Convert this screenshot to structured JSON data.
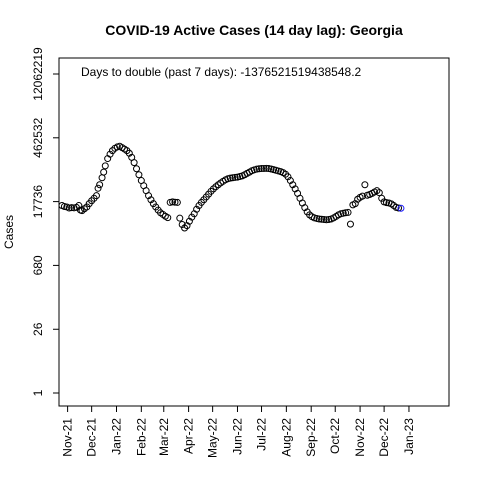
{
  "chart_data": {
    "type": "scatter",
    "title": "COVID-19 Active Cases (14 day lag): Georgia",
    "xlabel": "",
    "ylabel": "Cases",
    "annotation": "Days to double (past 7 days): -1376521519438548.2",
    "y_scale": "log",
    "y_ticks": [
      1,
      26,
      680,
      17736,
      462532,
      12062219
    ],
    "x_tick_labels": [
      "Nov-21",
      "Dec-21",
      "Jan-22",
      "Feb-22",
      "Mar-22",
      "Apr-22",
      "May-22",
      "Jun-22",
      "Jul-22",
      "Aug-22",
      "Sep-22",
      "Oct-22",
      "Nov-22",
      "Dec-22",
      "Jan-23"
    ],
    "x_range": [
      "2021-10-25",
      "2023-02-05"
    ],
    "ylim": [
      1,
      12062219
    ],
    "grid": false,
    "marker": "open-circle",
    "last_point_color": "#1a1aff",
    "points": [
      [
        "2021-10-25",
        14500
      ],
      [
        "2021-10-28",
        13800
      ],
      [
        "2021-10-31",
        13500
      ],
      [
        "2021-11-03",
        12800
      ],
      [
        "2021-11-06",
        13000
      ],
      [
        "2021-11-09",
        12900
      ],
      [
        "2021-11-12",
        13200
      ],
      [
        "2021-11-15",
        14500
      ],
      [
        "2021-11-17",
        11500
      ],
      [
        "2021-11-19",
        11200
      ],
      [
        "2021-11-22",
        12300
      ],
      [
        "2021-11-25",
        13500
      ],
      [
        "2021-11-28",
        16000
      ],
      [
        "2021-12-01",
        18500
      ],
      [
        "2021-12-04",
        21000
      ],
      [
        "2021-12-07",
        24000
      ],
      [
        "2021-12-09",
        35000
      ],
      [
        "2021-12-11",
        42000
      ],
      [
        "2021-12-14",
        60000
      ],
      [
        "2021-12-16",
        80000
      ],
      [
        "2021-12-18",
        110000
      ],
      [
        "2021-12-21",
        160000
      ],
      [
        "2021-12-24",
        200000
      ],
      [
        "2021-12-27",
        240000
      ],
      [
        "2021-12-30",
        270000
      ],
      [
        "2022-01-02",
        290000
      ],
      [
        "2022-01-05",
        300000
      ],
      [
        "2022-01-08",
        280000
      ],
      [
        "2022-01-11",
        260000
      ],
      [
        "2022-01-14",
        240000
      ],
      [
        "2022-01-17",
        210000
      ],
      [
        "2022-01-20",
        170000
      ],
      [
        "2022-01-23",
        130000
      ],
      [
        "2022-01-26",
        95000
      ],
      [
        "2022-01-29",
        70000
      ],
      [
        "2022-02-01",
        52000
      ],
      [
        "2022-02-04",
        40000
      ],
      [
        "2022-02-07",
        31000
      ],
      [
        "2022-02-10",
        24000
      ],
      [
        "2022-02-13",
        19500
      ],
      [
        "2022-02-16",
        16000
      ],
      [
        "2022-02-19",
        13500
      ],
      [
        "2022-02-22",
        11500
      ],
      [
        "2022-02-25",
        10000
      ],
      [
        "2022-02-28",
        9200
      ],
      [
        "2022-03-03",
        8400
      ],
      [
        "2022-03-06",
        7800
      ],
      [
        "2022-03-09",
        17000
      ],
      [
        "2022-03-12",
        17500
      ],
      [
        "2022-03-15",
        17200
      ],
      [
        "2022-03-18",
        17000
      ],
      [
        "2022-03-21",
        7600
      ],
      [
        "2022-03-24",
        5500
      ],
      [
        "2022-03-27",
        4600
      ],
      [
        "2022-03-30",
        5200
      ],
      [
        "2022-04-02",
        6500
      ],
      [
        "2022-04-05",
        8000
      ],
      [
        "2022-04-08",
        9500
      ],
      [
        "2022-04-11",
        12000
      ],
      [
        "2022-04-14",
        14500
      ],
      [
        "2022-04-17",
        17000
      ],
      [
        "2022-04-20",
        19500
      ],
      [
        "2022-04-23",
        22500
      ],
      [
        "2022-04-26",
        26000
      ],
      [
        "2022-04-29",
        30000
      ],
      [
        "2022-05-02",
        34000
      ],
      [
        "2022-05-05",
        38000
      ],
      [
        "2022-05-08",
        42000
      ],
      [
        "2022-05-11",
        46000
      ],
      [
        "2022-05-14",
        50000
      ],
      [
        "2022-05-17",
        54000
      ],
      [
        "2022-05-20",
        57000
      ],
      [
        "2022-05-23",
        59000
      ],
      [
        "2022-05-26",
        60000
      ],
      [
        "2022-05-29",
        61000
      ],
      [
        "2022-06-01",
        62000
      ],
      [
        "2022-06-04",
        64000
      ],
      [
        "2022-06-07",
        66000
      ],
      [
        "2022-06-10",
        70000
      ],
      [
        "2022-06-13",
        75000
      ],
      [
        "2022-06-16",
        80000
      ],
      [
        "2022-06-19",
        86000
      ],
      [
        "2022-06-22",
        90000
      ],
      [
        "2022-06-25",
        93000
      ],
      [
        "2022-06-28",
        95000
      ],
      [
        "2022-07-01",
        96000
      ],
      [
        "2022-07-04",
        96500
      ],
      [
        "2022-07-07",
        97000
      ],
      [
        "2022-07-10",
        96000
      ],
      [
        "2022-07-13",
        94000
      ],
      [
        "2022-07-16",
        91000
      ],
      [
        "2022-07-19",
        88000
      ],
      [
        "2022-07-22",
        85000
      ],
      [
        "2022-07-25",
        82000
      ],
      [
        "2022-07-28",
        78000
      ],
      [
        "2022-07-31",
        72000
      ],
      [
        "2022-08-03",
        63000
      ],
      [
        "2022-08-06",
        52000
      ],
      [
        "2022-08-09",
        42000
      ],
      [
        "2022-08-12",
        34000
      ],
      [
        "2022-08-15",
        27000
      ],
      [
        "2022-08-18",
        21000
      ],
      [
        "2022-08-21",
        16500
      ],
      [
        "2022-08-24",
        13000
      ],
      [
        "2022-08-27",
        10500
      ],
      [
        "2022-08-30",
        9000
      ],
      [
        "2022-09-02",
        8200
      ],
      [
        "2022-09-05",
        7700
      ],
      [
        "2022-09-08",
        7500
      ],
      [
        "2022-09-11",
        7300
      ],
      [
        "2022-09-14",
        7200
      ],
      [
        "2022-09-17",
        7100
      ],
      [
        "2022-09-20",
        7000
      ],
      [
        "2022-09-23",
        7100
      ],
      [
        "2022-09-26",
        7300
      ],
      [
        "2022-09-29",
        7700
      ],
      [
        "2022-10-02",
        8300
      ],
      [
        "2022-10-05",
        9000
      ],
      [
        "2022-10-08",
        9500
      ],
      [
        "2022-10-11",
        9800
      ],
      [
        "2022-10-14",
        10000
      ],
      [
        "2022-10-17",
        10200
      ],
      [
        "2022-10-20",
        5600
      ],
      [
        "2022-10-23",
        15000
      ],
      [
        "2022-10-26",
        16000
      ],
      [
        "2022-10-29",
        20000
      ],
      [
        "2022-11-01",
        22000
      ],
      [
        "2022-11-04",
        23500
      ],
      [
        "2022-11-07",
        42000
      ],
      [
        "2022-11-10",
        24500
      ],
      [
        "2022-11-13",
        25500
      ],
      [
        "2022-11-16",
        27000
      ],
      [
        "2022-11-19",
        29000
      ],
      [
        "2022-11-22",
        31000
      ],
      [
        "2022-11-25",
        28000
      ],
      [
        "2022-11-28",
        21000
      ],
      [
        "2022-12-01",
        17500
      ],
      [
        "2022-12-04",
        16800
      ],
      [
        "2022-12-07",
        16500
      ],
      [
        "2022-12-10",
        15800
      ],
      [
        "2022-12-13",
        14500
      ],
      [
        "2022-12-16",
        13200
      ],
      [
        "2022-12-19",
        12800
      ],
      [
        "2022-12-22",
        12600
      ]
    ]
  }
}
